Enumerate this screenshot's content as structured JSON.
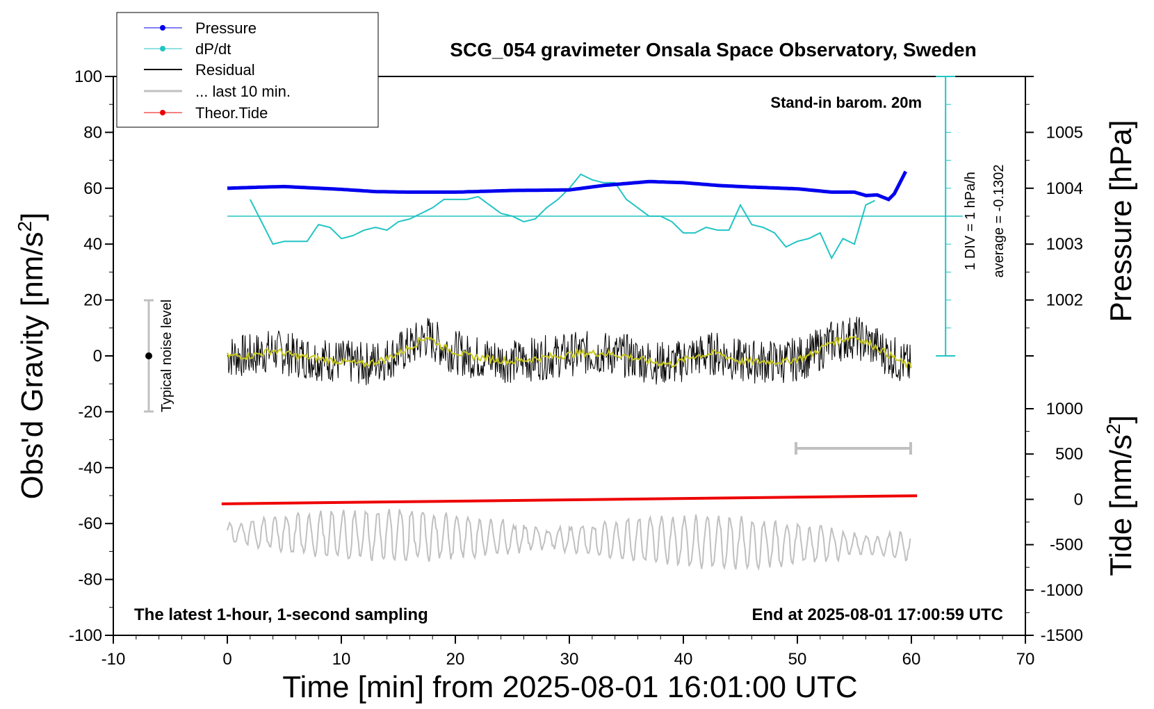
{
  "chart_data": {
    "type": "line",
    "title": "SCG_054 gravimeter Onsala Space Observatory, Sweden",
    "xlabel": "Time [min] from 2025-08-01 16:01:00 UTC",
    "ylabel_left": "Obs'd Gravity [nm/s",
    "ylabel_left_sup": "2",
    "ylabel_left_end": "]",
    "ylabel_pressure": "Pressure [hPa]",
    "ylabel_tide": "Tide [nm/s",
    "ylabel_tide_sup": "2",
    "ylabel_tide_end": "]",
    "xlim": [
      -10,
      70
    ],
    "ylim": [
      -100,
      100
    ],
    "x_ticks": [
      "-10",
      "0",
      "10",
      "20",
      "30",
      "40",
      "50",
      "60",
      "70"
    ],
    "y_ticks": [
      "100",
      "80",
      "60",
      "40",
      "20",
      "0",
      "-20",
      "-40",
      "-60",
      "-80",
      "-100"
    ],
    "pressure_ticks": [
      "1005",
      "1004",
      "1003",
      "1002"
    ],
    "pressure_ylim": [
      1000,
      1006
    ],
    "tide_ticks": [
      "1000",
      "500",
      "0",
      "-500",
      "-1000",
      "-1500"
    ],
    "tide_ylim": [
      -1500,
      1000
    ],
    "legend_position": "top-left",
    "annotations": {
      "barometer": "Stand-in barom. 20m",
      "div_label": "1 DIV = 1 hPa/h",
      "average_label": "average = -0.1302",
      "noise_label": "Typical noise level",
      "bottom_left": "The latest 1-hour, 1-second sampling",
      "bottom_right": "End at 2025-08-01 17:00:59 UTC"
    },
    "colors": {
      "pressure": "#0000ee",
      "dpdt": "#22c4c4",
      "residual": "#000000",
      "residual_smooth": "#c8c81e",
      "last10": "#c0c0c0",
      "tide": "#ee0000"
    },
    "series": [
      {
        "name": "Pressure",
        "axis": "pressure",
        "x": [
          0,
          3,
          5,
          8,
          10,
          13,
          16,
          20,
          25,
          30,
          33,
          37,
          40,
          43,
          46,
          50,
          53,
          55,
          56,
          57,
          58,
          58.5,
          59,
          59.5
        ],
        "y": [
          1004.0,
          1004.02,
          1004.03,
          1004.0,
          1003.98,
          1003.94,
          1003.93,
          1003.93,
          1003.96,
          1003.97,
          1004.05,
          1004.12,
          1004.1,
          1004.05,
          1004.02,
          1003.99,
          1003.93,
          1003.93,
          1003.87,
          1003.88,
          1003.8,
          1003.9,
          1004.1,
          1004.3
        ]
      },
      {
        "name": "dP/dt",
        "axis": "dpdt",
        "x": [
          2,
          3,
          4,
          5,
          6,
          7,
          8,
          9,
          10,
          11,
          12,
          13,
          14,
          15,
          16,
          17,
          18,
          19,
          20,
          21,
          22,
          23,
          24,
          25,
          26,
          27,
          28,
          29,
          30,
          31,
          32,
          33,
          34,
          35,
          36,
          37,
          38,
          39,
          40,
          41,
          42,
          43,
          44,
          45,
          46,
          47,
          48,
          49,
          50,
          51,
          52,
          53,
          54,
          55,
          56,
          57
        ],
        "y": [
          5.6,
          4.8,
          4.0,
          4.1,
          4.1,
          4.1,
          4.7,
          4.6,
          4.2,
          4.3,
          4.5,
          4.6,
          4.5,
          4.8,
          4.9,
          5.1,
          5.3,
          5.6,
          5.6,
          5.6,
          5.7,
          5.4,
          5.1,
          5.0,
          4.8,
          4.9,
          5.3,
          5.6,
          6.0,
          6.5,
          6.3,
          6.2,
          6.2,
          5.6,
          5.3,
          5.0,
          5.0,
          4.8,
          4.4,
          4.4,
          4.6,
          4.5,
          4.5,
          5.4,
          4.7,
          4.6,
          4.4,
          3.9,
          4.1,
          4.2,
          4.4,
          3.5,
          4.2,
          4.0,
          5.4,
          5.6
        ]
      },
      {
        "name": "Residual",
        "axis": "gravity",
        "x": [
          0,
          2,
          4,
          6,
          8,
          10,
          12,
          14,
          16,
          17.5,
          19,
          21,
          23,
          25,
          27,
          29,
          31,
          33,
          35,
          37,
          39,
          41,
          43,
          45,
          47,
          49,
          51,
          53,
          55,
          57,
          59,
          60
        ],
        "y": [
          0,
          0,
          2,
          0,
          -1,
          -2,
          -3,
          -1,
          3,
          7,
          3,
          0,
          -1,
          -2,
          -1,
          0,
          1,
          1,
          0,
          -2,
          -3,
          0,
          1,
          -2,
          -2,
          -2,
          0,
          5,
          7,
          3,
          -2,
          -4
        ]
      },
      {
        "name": "... last 10 min.",
        "axis": "gravity",
        "x": [
          0,
          60
        ],
        "y": [
          -63,
          -68
        ]
      },
      {
        "name": "Theor.Tide",
        "axis": "tide",
        "x": [
          -0.5,
          60.5
        ],
        "y": [
          -50,
          40
        ]
      }
    ]
  }
}
